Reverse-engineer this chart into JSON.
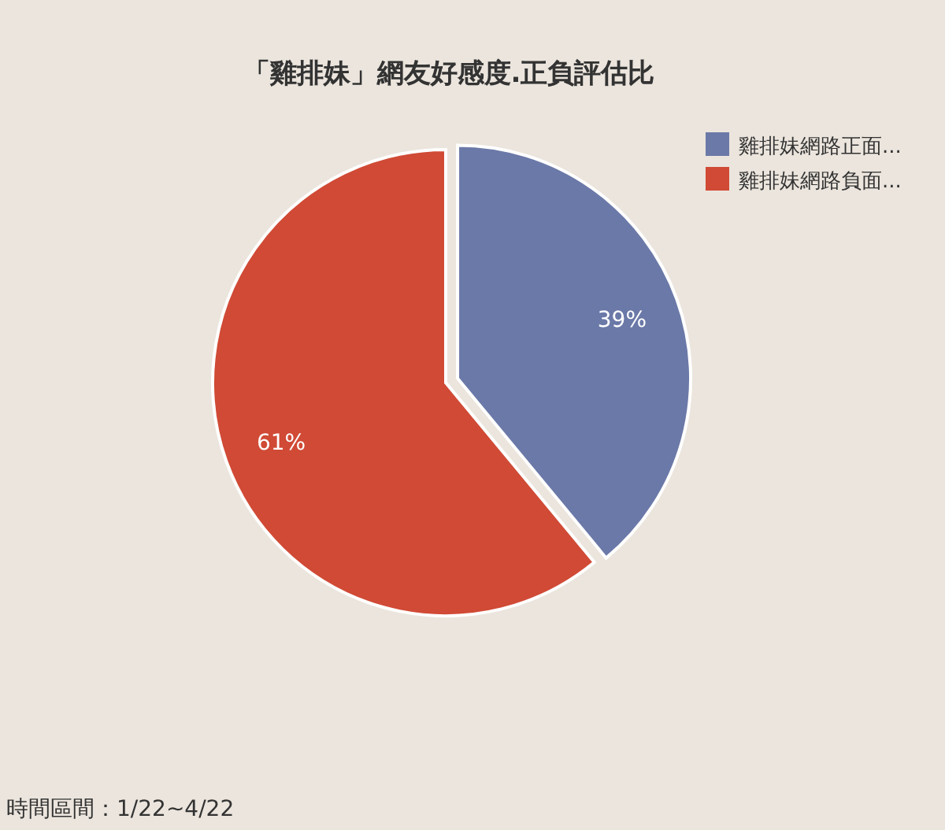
{
  "chart_data": {
    "type": "pie",
    "title": "「雞排妹」網友好感度.正負評估比",
    "categories": [
      "雞排妹網路正面...",
      "雞排妹網路負面..."
    ],
    "values": [
      39,
      61
    ],
    "colors": [
      "#6b79a8",
      "#d04a35"
    ],
    "value_labels": [
      "39%",
      "61%"
    ],
    "legend": "top right",
    "annotations": [
      "時間區間：1/22~4/22"
    ]
  }
}
